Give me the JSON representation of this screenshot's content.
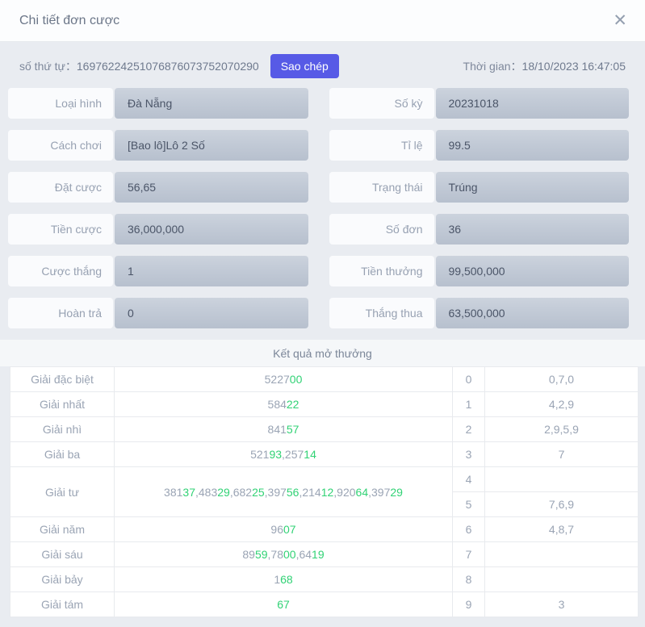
{
  "dialog": {
    "title": "Chi tiết đơn cược",
    "close_icon": "✕"
  },
  "meta": {
    "serial_label": "số thứ tự：",
    "serial_value": "16976224251076876073752070290",
    "copy_button": "Sao chép",
    "copy_button_color": "#575ae6",
    "time_label": "Thời gian：",
    "time_value": "18/10/2023 16:47:05"
  },
  "form": {
    "rows": [
      [
        {
          "label": "Loại hình",
          "value": "Đà Nẵng"
        },
        {
          "label": "Số kỳ",
          "value": "20231018"
        }
      ],
      [
        {
          "label": "Cách chơi",
          "value": "[Bao lô]Lô 2 Số"
        },
        {
          "label": "Tỉ lệ",
          "value": "99.5"
        }
      ],
      [
        {
          "label": "Đặt cược",
          "value": "56,65"
        },
        {
          "label": "Trạng thái",
          "value": "Trúng"
        }
      ],
      [
        {
          "label": "Tiền cược",
          "value": "36,000,000"
        },
        {
          "label": "Số đơn",
          "value": "36"
        }
      ],
      [
        {
          "label": "Cược thắng",
          "value": "1"
        },
        {
          "label": "Tiền thưởng",
          "value": "99,500,000"
        }
      ],
      [
        {
          "label": "Hoàn trả",
          "value": "0"
        },
        {
          "label": "Thắng thua",
          "value": "63,500,000"
        }
      ]
    ]
  },
  "results": {
    "title": "Kết quả mở thưởng",
    "highlight_color": "#31d275",
    "normal_color": "#9aa4b4",
    "prizes": [
      {
        "label": "Giải đặc biệt",
        "span": 1,
        "parts": [
          "5227",
          "00"
        ]
      },
      {
        "label": "Giải nhất",
        "span": 1,
        "parts": [
          "584",
          "22"
        ]
      },
      {
        "label": "Giải nhì",
        "span": 1,
        "parts": [
          "841",
          "57"
        ]
      },
      {
        "label": "Giải ba",
        "span": 1,
        "parts": [
          "521",
          "93",
          ",257",
          "14"
        ]
      },
      {
        "label": "Giải tư",
        "span": 2,
        "parts": [
          "381",
          "37",
          ",483",
          "29",
          ",682",
          "25",
          ",397",
          "56",
          ",214",
          "12",
          ",920",
          "64",
          ",397",
          "29"
        ]
      },
      {
        "label": "Giải năm",
        "span": 1,
        "parts": [
          "96",
          "07"
        ]
      },
      {
        "label": "Giải sáu",
        "span": 1,
        "parts": [
          "89",
          "59",
          ",78",
          "00",
          ",64",
          "19"
        ]
      },
      {
        "label": "Giải bảy",
        "span": 1,
        "parts": [
          "1",
          "68"
        ]
      },
      {
        "label": "Giải tám",
        "span": 1,
        "parts": [
          "",
          "67"
        ]
      }
    ],
    "digits": [
      {
        "digit": "0",
        "values": "0,7,0"
      },
      {
        "digit": "1",
        "values": "4,2,9"
      },
      {
        "digit": "2",
        "values": "2,9,5,9"
      },
      {
        "digit": "3",
        "values": "7"
      },
      {
        "digit": "4",
        "values": ""
      },
      {
        "digit": "5",
        "values": "7,6,9"
      },
      {
        "digit": "6",
        "values": "4,8,7"
      },
      {
        "digit": "7",
        "values": ""
      },
      {
        "digit": "8",
        "values": ""
      },
      {
        "digit": "9",
        "values": "3"
      }
    ]
  }
}
